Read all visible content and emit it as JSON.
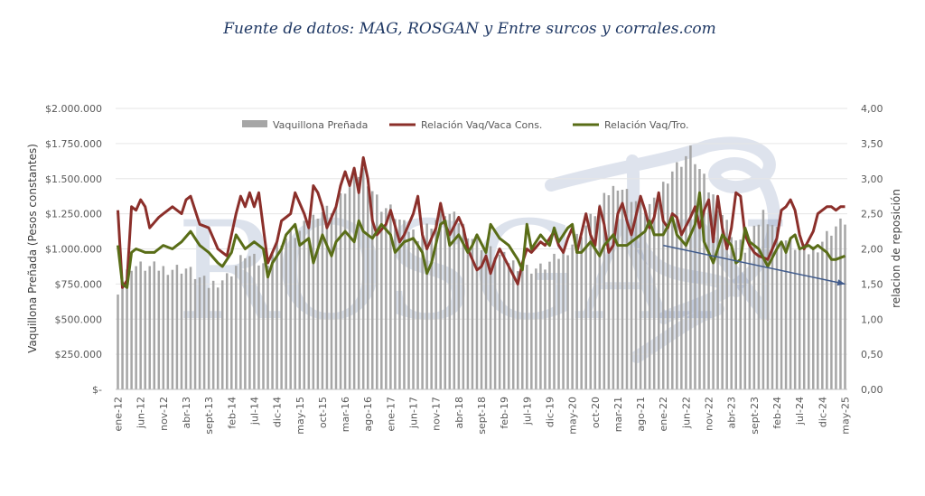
{
  "source_note": "Fuente de datos: MAG, ROSGAN y Entre surcos y corrales.com",
  "watermark": "ROSGAN",
  "colors": {
    "bars": "#a6a6a6",
    "vaca": "#8b2f2a",
    "tro": "#596d17",
    "trend": "#405b8c",
    "text": "#595959"
  },
  "chart_data": {
    "type": "bar+line",
    "x_tick_labels": [
      "ene-12",
      "jun-12",
      "nov-12",
      "abr-13",
      "sept-13",
      "feb-14",
      "jul-14",
      "dic-14",
      "may-15",
      "oct-15",
      "mar-16",
      "ago-16",
      "ene-17",
      "jun-17",
      "nov-17",
      "abr-18",
      "sept-18",
      "feb-19",
      "jul-19",
      "dic-19",
      "may-20",
      "oct-20",
      "mar-21",
      "ago-21",
      "ene-22",
      "jun-22",
      "nov-22",
      "abr-23",
      "sept-23",
      "feb-24",
      "jul-24",
      "dic-24",
      "may-25"
    ],
    "x_start": "ene-12",
    "x_end": "may-25",
    "frequency": "monthly",
    "y_left": {
      "label": "Vaquillona Preñada (Pesos constantes)",
      "ticks": [
        "$-",
        "$250.000",
        "$500.000",
        "$750.000",
        "$1.000.000",
        "$1.250.000",
        "$1.500.000",
        "$1.750.000",
        "$2.000.000"
      ],
      "range": [
        0,
        2000000
      ]
    },
    "y_right": {
      "label": "relacion de reposición",
      "ticks": [
        "0,00",
        "0,50",
        "1,00",
        "1,50",
        "2,00",
        "2,50",
        "3,00",
        "3,50",
        "4,00"
      ],
      "range": [
        0,
        4
      ]
    },
    "legend": {
      "position": "top",
      "entries": [
        "Vaquillona Preñada",
        "Relación Vaq/Vaca Cons.",
        "Relación Vaq/Tro."
      ]
    },
    "series": [
      {
        "name": "Vaquillona Preñada",
        "type": "bar",
        "axis": "left",
        "anchors": [
          [
            0,
            720000
          ],
          [
            3,
            880000
          ],
          [
            10,
            860000
          ],
          [
            15,
            860000
          ],
          [
            20,
            740000
          ],
          [
            24,
            800000
          ],
          [
            28,
            960000
          ],
          [
            32,
            880000
          ],
          [
            36,
            1060000
          ],
          [
            40,
            1120000
          ],
          [
            44,
            1260000
          ],
          [
            48,
            1300000
          ],
          [
            50,
            1420000
          ],
          [
            52,
            1500000
          ],
          [
            54,
            1560000
          ],
          [
            56,
            1420000
          ],
          [
            58,
            1300000
          ],
          [
            60,
            1280000
          ],
          [
            63,
            1160000
          ],
          [
            66,
            1100000
          ],
          [
            69,
            1180000
          ],
          [
            72,
            1260000
          ],
          [
            75,
            1200000
          ],
          [
            78,
            1080000
          ],
          [
            81,
            1000000
          ],
          [
            84,
            950000
          ],
          [
            87,
            900000
          ],
          [
            90,
            860000
          ],
          [
            93,
            860000
          ],
          [
            96,
            920000
          ],
          [
            99,
            1000000
          ],
          [
            102,
            1120000
          ],
          [
            105,
            1260000
          ],
          [
            108,
            1400000
          ],
          [
            110,
            1460000
          ],
          [
            112,
            1400000
          ],
          [
            114,
            1340000
          ],
          [
            116,
            1300000
          ],
          [
            118,
            1320000
          ],
          [
            120,
            1460000
          ],
          [
            122,
            1560000
          ],
          [
            124,
            1620000
          ],
          [
            126,
            1700000
          ],
          [
            128,
            1560000
          ],
          [
            130,
            1420000
          ],
          [
            132,
            1320000
          ],
          [
            134,
            1180000
          ],
          [
            136,
            1060000
          ],
          [
            138,
            1000000
          ],
          [
            140,
            1120000
          ],
          [
            142,
            1260000
          ],
          [
            144,
            1180000
          ],
          [
            146,
            1080000
          ],
          [
            148,
            1040000
          ],
          [
            150,
            1000000
          ],
          [
            152,
            980000
          ],
          [
            154,
            1020000
          ],
          [
            156,
            1100000
          ],
          [
            158,
            1160000
          ],
          [
            160,
            1200000
          ]
        ]
      },
      {
        "name": "Relación Vaq/Vaca Cons.",
        "type": "line",
        "axis": "right",
        "anchors": [
          [
            0,
            2.55
          ],
          [
            1,
            1.45
          ],
          [
            2,
            1.55
          ],
          [
            3,
            2.6
          ],
          [
            4,
            2.55
          ],
          [
            5,
            2.7
          ],
          [
            6,
            2.6
          ],
          [
            7,
            2.3
          ],
          [
            9,
            2.45
          ],
          [
            10,
            2.5
          ],
          [
            12,
            2.6
          ],
          [
            14,
            2.5
          ],
          [
            15,
            2.7
          ],
          [
            16,
            2.75
          ],
          [
            18,
            2.35
          ],
          [
            20,
            2.3
          ],
          [
            22,
            2.0
          ],
          [
            24,
            1.9
          ],
          [
            26,
            2.5
          ],
          [
            27,
            2.75
          ],
          [
            28,
            2.6
          ],
          [
            29,
            2.8
          ],
          [
            30,
            2.6
          ],
          [
            31,
            2.8
          ],
          [
            32,
            2.3
          ],
          [
            33,
            1.8
          ],
          [
            35,
            2.1
          ],
          [
            36,
            2.4
          ],
          [
            38,
            2.5
          ],
          [
            39,
            2.8
          ],
          [
            41,
            2.5
          ],
          [
            42,
            2.3
          ],
          [
            43,
            2.9
          ],
          [
            44,
            2.8
          ],
          [
            45,
            2.6
          ],
          [
            46,
            2.3
          ],
          [
            48,
            2.6
          ],
          [
            49,
            2.9
          ],
          [
            50,
            3.1
          ],
          [
            51,
            2.9
          ],
          [
            52,
            3.15
          ],
          [
            53,
            2.8
          ],
          [
            54,
            3.3
          ],
          [
            55,
            3.0
          ],
          [
            56,
            2.4
          ],
          [
            57,
            2.2
          ],
          [
            59,
            2.35
          ],
          [
            60,
            2.55
          ],
          [
            62,
            2.1
          ],
          [
            63,
            2.2
          ],
          [
            65,
            2.5
          ],
          [
            66,
            2.75
          ],
          [
            67,
            2.2
          ],
          [
            68,
            2.0
          ],
          [
            70,
            2.3
          ],
          [
            71,
            2.65
          ],
          [
            72,
            2.35
          ],
          [
            73,
            2.2
          ],
          [
            75,
            2.45
          ],
          [
            76,
            2.3
          ],
          [
            77,
            2.0
          ],
          [
            79,
            1.7
          ],
          [
            80,
            1.75
          ],
          [
            81,
            1.9
          ],
          [
            82,
            1.65
          ],
          [
            83,
            1.85
          ],
          [
            84,
            2.0
          ],
          [
            86,
            1.75
          ],
          [
            88,
            1.5
          ],
          [
            89,
            1.8
          ],
          [
            90,
            2.0
          ],
          [
            91,
            1.95
          ],
          [
            93,
            2.1
          ],
          [
            94,
            2.05
          ],
          [
            96,
            2.25
          ],
          [
            97,
            2.05
          ],
          [
            98,
            1.95
          ],
          [
            99,
            2.15
          ],
          [
            100,
            2.3
          ],
          [
            101,
            1.95
          ],
          [
            103,
            2.5
          ],
          [
            104,
            2.2
          ],
          [
            105,
            2.05
          ],
          [
            106,
            2.6
          ],
          [
            107,
            2.35
          ],
          [
            108,
            1.95
          ],
          [
            109,
            2.05
          ],
          [
            110,
            2.5
          ],
          [
            111,
            2.65
          ],
          [
            112,
            2.4
          ],
          [
            113,
            2.2
          ],
          [
            115,
            2.75
          ],
          [
            116,
            2.55
          ],
          [
            117,
            2.3
          ],
          [
            118,
            2.45
          ],
          [
            119,
            2.8
          ],
          [
            120,
            2.4
          ],
          [
            121,
            2.3
          ],
          [
            122,
            2.5
          ],
          [
            123,
            2.45
          ],
          [
            124,
            2.2
          ],
          [
            126,
            2.45
          ],
          [
            127,
            2.6
          ],
          [
            128,
            2.3
          ],
          [
            129,
            2.55
          ],
          [
            130,
            2.7
          ],
          [
            131,
            2.1
          ],
          [
            132,
            2.75
          ],
          [
            133,
            2.3
          ],
          [
            134,
            2.0
          ],
          [
            135,
            2.3
          ],
          [
            136,
            2.8
          ],
          [
            137,
            2.75
          ],
          [
            138,
            2.2
          ],
          [
            139,
            2.05
          ],
          [
            140,
            1.95
          ],
          [
            141,
            1.9
          ],
          [
            143,
            1.85
          ],
          [
            145,
            2.15
          ],
          [
            146,
            2.55
          ],
          [
            147,
            2.6
          ],
          [
            148,
            2.7
          ],
          [
            149,
            2.55
          ],
          [
            150,
            2.2
          ],
          [
            151,
            2.0
          ],
          [
            153,
            2.25
          ],
          [
            154,
            2.5
          ],
          [
            155,
            2.55
          ],
          [
            156,
            2.6
          ],
          [
            157,
            2.6
          ],
          [
            158,
            2.55
          ],
          [
            159,
            2.6
          ],
          [
            160,
            2.6
          ]
        ]
      },
      {
        "name": "Relación Vaq/Tro.",
        "type": "line",
        "axis": "right",
        "anchors": [
          [
            0,
            2.05
          ],
          [
            1,
            1.5
          ],
          [
            2,
            1.45
          ],
          [
            3,
            1.95
          ],
          [
            4,
            2.0
          ],
          [
            6,
            1.95
          ],
          [
            8,
            1.95
          ],
          [
            10,
            2.05
          ],
          [
            12,
            2.0
          ],
          [
            14,
            2.1
          ],
          [
            16,
            2.25
          ],
          [
            18,
            2.05
          ],
          [
            20,
            1.95
          ],
          [
            22,
            1.8
          ],
          [
            23,
            1.75
          ],
          [
            25,
            1.95
          ],
          [
            26,
            2.2
          ],
          [
            27,
            2.1
          ],
          [
            28,
            2.0
          ],
          [
            30,
            2.1
          ],
          [
            32,
            2.0
          ],
          [
            33,
            1.6
          ],
          [
            34,
            1.8
          ],
          [
            36,
            2.0
          ],
          [
            37,
            2.2
          ],
          [
            39,
            2.35
          ],
          [
            40,
            2.05
          ],
          [
            42,
            2.15
          ],
          [
            43,
            1.8
          ],
          [
            45,
            2.2
          ],
          [
            46,
            2.05
          ],
          [
            47,
            1.9
          ],
          [
            48,
            2.1
          ],
          [
            50,
            2.25
          ],
          [
            52,
            2.1
          ],
          [
            53,
            2.4
          ],
          [
            54,
            2.25
          ],
          [
            56,
            2.15
          ],
          [
            58,
            2.35
          ],
          [
            60,
            2.2
          ],
          [
            61,
            1.95
          ],
          [
            63,
            2.1
          ],
          [
            65,
            2.15
          ],
          [
            67,
            1.95
          ],
          [
            68,
            1.65
          ],
          [
            69,
            1.8
          ],
          [
            71,
            2.35
          ],
          [
            72,
            2.4
          ],
          [
            73,
            2.05
          ],
          [
            75,
            2.2
          ],
          [
            77,
            1.95
          ],
          [
            78,
            2.05
          ],
          [
            79,
            2.2
          ],
          [
            81,
            1.95
          ],
          [
            82,
            2.35
          ],
          [
            84,
            2.15
          ],
          [
            86,
            2.05
          ],
          [
            88,
            1.85
          ],
          [
            89,
            1.7
          ],
          [
            90,
            2.35
          ],
          [
            91,
            2.0
          ],
          [
            93,
            2.2
          ],
          [
            95,
            2.05
          ],
          [
            96,
            2.3
          ],
          [
            97,
            2.1
          ],
          [
            99,
            2.3
          ],
          [
            100,
            2.35
          ],
          [
            101,
            1.95
          ],
          [
            102,
            1.95
          ],
          [
            104,
            2.1
          ],
          [
            106,
            1.9
          ],
          [
            107,
            2.05
          ],
          [
            109,
            2.2
          ],
          [
            110,
            2.05
          ],
          [
            112,
            2.05
          ],
          [
            114,
            2.15
          ],
          [
            116,
            2.25
          ],
          [
            117,
            2.4
          ],
          [
            118,
            2.2
          ],
          [
            120,
            2.2
          ],
          [
            122,
            2.45
          ],
          [
            123,
            2.2
          ],
          [
            125,
            2.05
          ],
          [
            127,
            2.35
          ],
          [
            128,
            2.8
          ],
          [
            129,
            2.1
          ],
          [
            131,
            1.8
          ],
          [
            133,
            2.2
          ],
          [
            135,
            2.05
          ],
          [
            136,
            1.8
          ],
          [
            137,
            1.85
          ],
          [
            138,
            2.3
          ],
          [
            139,
            2.1
          ],
          [
            141,
            2.0
          ],
          [
            143,
            1.75
          ],
          [
            145,
            2.0
          ],
          [
            146,
            2.1
          ],
          [
            147,
            1.95
          ],
          [
            148,
            2.15
          ],
          [
            149,
            2.2
          ],
          [
            150,
            2.0
          ],
          [
            152,
            2.05
          ],
          [
            153,
            2.0
          ],
          [
            154,
            2.05
          ],
          [
            156,
            1.95
          ],
          [
            157,
            1.85
          ],
          [
            158,
            1.85
          ],
          [
            160,
            1.9
          ]
        ]
      }
    ],
    "annotations": [
      {
        "type": "trend-arrow",
        "from": [
          120,
          2.05
        ],
        "to": [
          160,
          1.5
        ]
      }
    ]
  }
}
